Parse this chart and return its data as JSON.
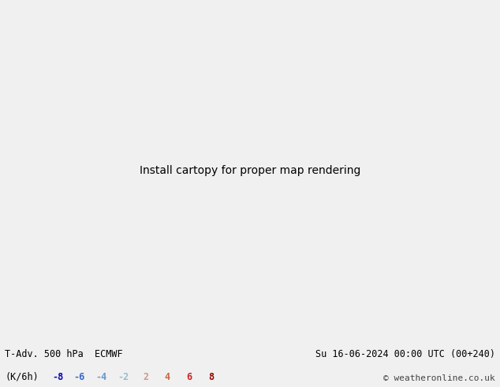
{
  "title_left": "T-Adv. 500 hPa  ECMWF",
  "title_right": "Su 16-06-2024 00:00 UTC (00+240)",
  "subtitle_left": "(K/6h)",
  "copyright": "© weatheronline.co.uk",
  "legend_values": [
    -8,
    -6,
    -4,
    -2,
    2,
    4,
    6,
    8
  ],
  "legend_colors": [
    "#0000bb",
    "#3366cc",
    "#6699cc",
    "#99bbcc",
    "#cc9988",
    "#cc6644",
    "#cc2222",
    "#990000"
  ],
  "bg_color": "#d8d8d8",
  "land_color": "#b8ddb0",
  "water_color": "#d8d8d8",
  "gray_color": "#b0b0b0",
  "contour_color": "#000000",
  "red_contour_color": "#ff0000",
  "figsize": [
    6.34,
    4.9
  ],
  "dpi": 100,
  "bottom_bg": "#f0f0f0",
  "contour_lw": 1.3,
  "label_fontsize": 7
}
